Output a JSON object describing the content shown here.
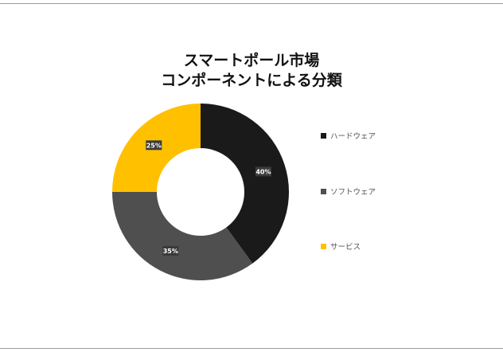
{
  "chart_data": {
    "type": "pie",
    "donut": true,
    "title_lines": [
      "スマートポール市場",
      "コンポーネントによる分類"
    ],
    "categories": [
      "ハードウェア",
      "ソフトウェア",
      "サービス"
    ],
    "values": [
      40,
      35,
      25
    ],
    "data_labels": [
      "40%",
      "35%",
      "25%"
    ],
    "colors": [
      "#1a1a1a",
      "#4f4f4f",
      "#ffc000"
    ],
    "legend_position": "right"
  }
}
